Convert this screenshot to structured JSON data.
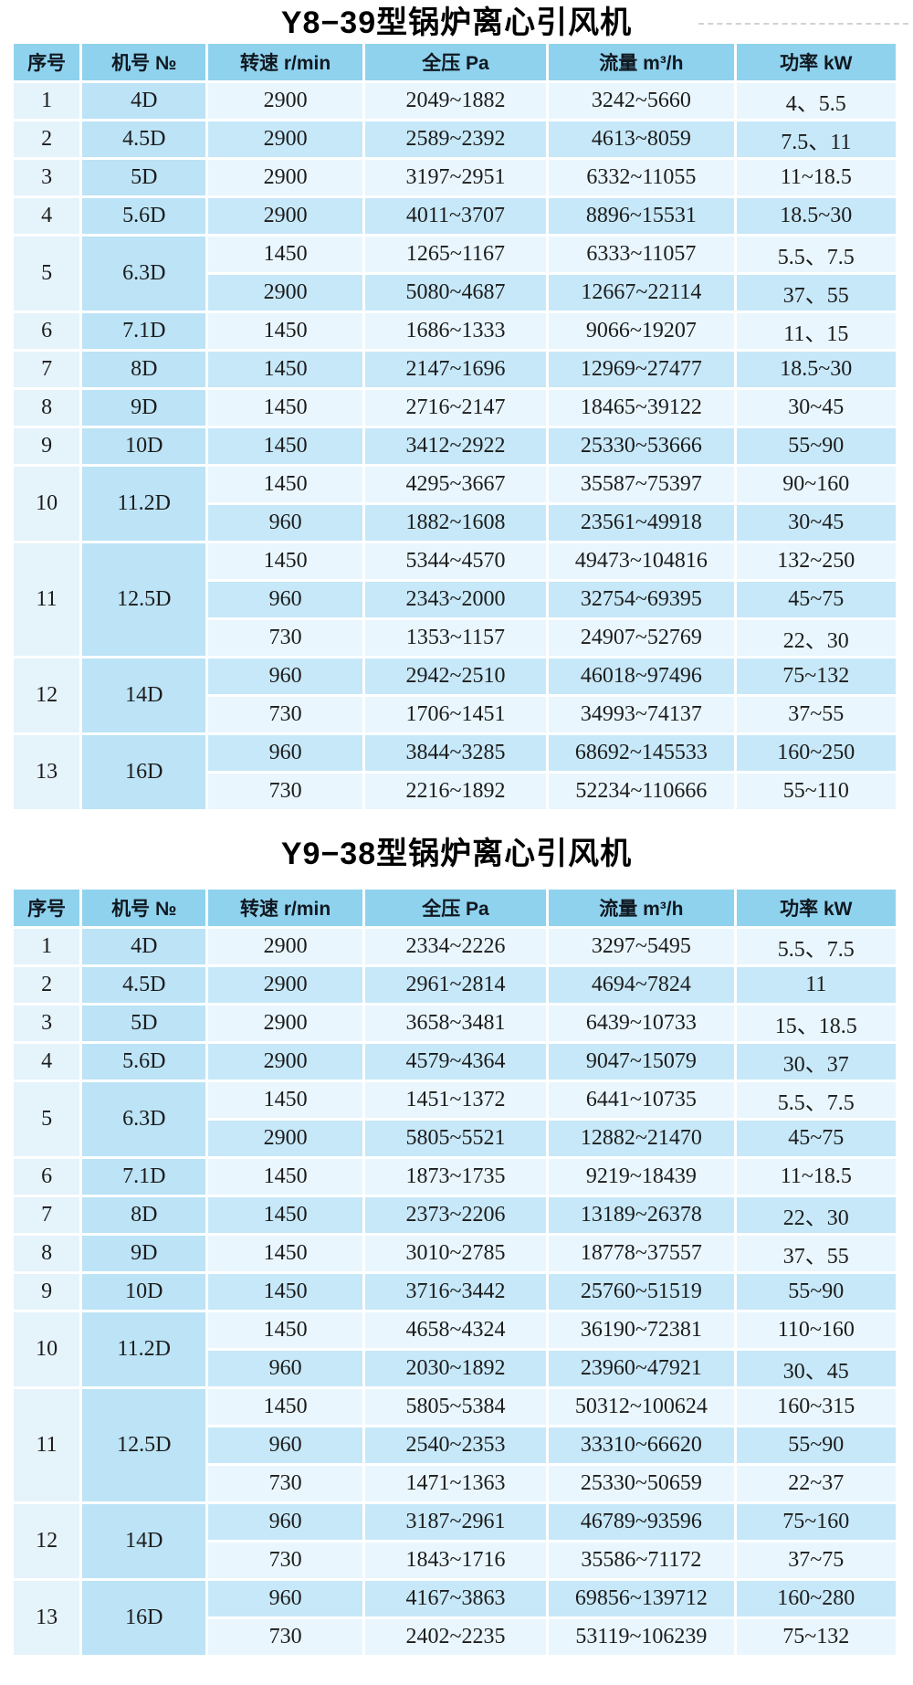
{
  "colors": {
    "header_bg": "#8fd2ee",
    "row_light": "#e9f6fd",
    "row_dark": "#c7e8f8",
    "model_col": "#bce3f6",
    "seq_col": "#e5f3fb",
    "text": "#1c1c1c"
  },
  "tables": [
    {
      "title": "Y8−39型锅炉离心引风机",
      "columns": [
        "序号",
        "机号 №",
        "转速 r/min",
        "全压 Pa",
        "流量 m³/h",
        "功率 kW"
      ],
      "rows": [
        {
          "seq": "1",
          "model": "4D",
          "subs": [
            {
              "speed": "2900",
              "pressure": "2049~1882",
              "flow": "3242~5660",
              "power": "4、5.5"
            }
          ]
        },
        {
          "seq": "2",
          "model": "4.5D",
          "subs": [
            {
              "speed": "2900",
              "pressure": "2589~2392",
              "flow": "4613~8059",
              "power": "7.5、11"
            }
          ]
        },
        {
          "seq": "3",
          "model": "5D",
          "subs": [
            {
              "speed": "2900",
              "pressure": "3197~2951",
              "flow": "6332~11055",
              "power": "11~18.5"
            }
          ]
        },
        {
          "seq": "4",
          "model": "5.6D",
          "subs": [
            {
              "speed": "2900",
              "pressure": "4011~3707",
              "flow": "8896~15531",
              "power": "18.5~30"
            }
          ]
        },
        {
          "seq": "5",
          "model": "6.3D",
          "subs": [
            {
              "speed": "1450",
              "pressure": "1265~1167",
              "flow": "6333~11057",
              "power": "5.5、7.5"
            },
            {
              "speed": "2900",
              "pressure": "5080~4687",
              "flow": "12667~22114",
              "power": "37、55"
            }
          ]
        },
        {
          "seq": "6",
          "model": "7.1D",
          "subs": [
            {
              "speed": "1450",
              "pressure": "1686~1333",
              "flow": "9066~19207",
              "power": "11、15"
            }
          ]
        },
        {
          "seq": "7",
          "model": "8D",
          "subs": [
            {
              "speed": "1450",
              "pressure": "2147~1696",
              "flow": "12969~27477",
              "power": "18.5~30"
            }
          ]
        },
        {
          "seq": "8",
          "model": "9D",
          "subs": [
            {
              "speed": "1450",
              "pressure": "2716~2147",
              "flow": "18465~39122",
              "power": "30~45"
            }
          ]
        },
        {
          "seq": "9",
          "model": "10D",
          "subs": [
            {
              "speed": "1450",
              "pressure": "3412~2922",
              "flow": "25330~53666",
              "power": "55~90"
            }
          ]
        },
        {
          "seq": "10",
          "model": "11.2D",
          "subs": [
            {
              "speed": "1450",
              "pressure": "4295~3667",
              "flow": "35587~75397",
              "power": "90~160"
            },
            {
              "speed": "960",
              "pressure": "1882~1608",
              "flow": "23561~49918",
              "power": "30~45"
            }
          ]
        },
        {
          "seq": "11",
          "model": "12.5D",
          "subs": [
            {
              "speed": "1450",
              "pressure": "5344~4570",
              "flow": "49473~104816",
              "power": "132~250"
            },
            {
              "speed": "960",
              "pressure": "2343~2000",
              "flow": "32754~69395",
              "power": "45~75"
            },
            {
              "speed": "730",
              "pressure": "1353~1157",
              "flow": "24907~52769",
              "power": "22、30"
            }
          ]
        },
        {
          "seq": "12",
          "model": "14D",
          "subs": [
            {
              "speed": "960",
              "pressure": "2942~2510",
              "flow": "46018~97496",
              "power": "75~132"
            },
            {
              "speed": "730",
              "pressure": "1706~1451",
              "flow": "34993~74137",
              "power": "37~55"
            }
          ]
        },
        {
          "seq": "13",
          "model": "16D",
          "subs": [
            {
              "speed": "960",
              "pressure": "3844~3285",
              "flow": "68692~145533",
              "power": "160~250"
            },
            {
              "speed": "730",
              "pressure": "2216~1892",
              "flow": "52234~110666",
              "power": "55~110"
            }
          ]
        }
      ]
    },
    {
      "title": "Y9−38型锅炉离心引风机",
      "columns": [
        "序号",
        "机号 №",
        "转速 r/min",
        "全压 Pa",
        "流量 m³/h",
        "功率 kW"
      ],
      "rows": [
        {
          "seq": "1",
          "model": "4D",
          "subs": [
            {
              "speed": "2900",
              "pressure": "2334~2226",
              "flow": "3297~5495",
              "power": "5.5、7.5"
            }
          ]
        },
        {
          "seq": "2",
          "model": "4.5D",
          "subs": [
            {
              "speed": "2900",
              "pressure": "2961~2814",
              "flow": "4694~7824",
              "power": "11"
            }
          ]
        },
        {
          "seq": "3",
          "model": "5D",
          "subs": [
            {
              "speed": "2900",
              "pressure": "3658~3481",
              "flow": "6439~10733",
              "power": "15、18.5"
            }
          ]
        },
        {
          "seq": "4",
          "model": "5.6D",
          "subs": [
            {
              "speed": "2900",
              "pressure": "4579~4364",
              "flow": "9047~15079",
              "power": "30、37"
            }
          ]
        },
        {
          "seq": "5",
          "model": "6.3D",
          "subs": [
            {
              "speed": "1450",
              "pressure": "1451~1372",
              "flow": "6441~10735",
              "power": "5.5、7.5"
            },
            {
              "speed": "2900",
              "pressure": "5805~5521",
              "flow": "12882~21470",
              "power": "45~75"
            }
          ]
        },
        {
          "seq": "6",
          "model": "7.1D",
          "subs": [
            {
              "speed": "1450",
              "pressure": "1873~1735",
              "flow": "9219~18439",
              "power": "11~18.5"
            }
          ]
        },
        {
          "seq": "7",
          "model": "8D",
          "subs": [
            {
              "speed": "1450",
              "pressure": "2373~2206",
              "flow": "13189~26378",
              "power": "22、30"
            }
          ]
        },
        {
          "seq": "8",
          "model": "9D",
          "subs": [
            {
              "speed": "1450",
              "pressure": "3010~2785",
              "flow": "18778~37557",
              "power": "37、55"
            }
          ]
        },
        {
          "seq": "9",
          "model": "10D",
          "subs": [
            {
              "speed": "1450",
              "pressure": "3716~3442",
              "flow": "25760~51519",
              "power": "55~90"
            }
          ]
        },
        {
          "seq": "10",
          "model": "11.2D",
          "subs": [
            {
              "speed": "1450",
              "pressure": "4658~4324",
              "flow": "36190~72381",
              "power": "110~160"
            },
            {
              "speed": "960",
              "pressure": "2030~1892",
              "flow": "23960~47921",
              "power": "30、45"
            }
          ]
        },
        {
          "seq": "11",
          "model": "12.5D",
          "subs": [
            {
              "speed": "1450",
              "pressure": "5805~5384",
              "flow": "50312~100624",
              "power": "160~315"
            },
            {
              "speed": "960",
              "pressure": "2540~2353",
              "flow": "33310~66620",
              "power": "55~90"
            },
            {
              "speed": "730",
              "pressure": "1471~1363",
              "flow": "25330~50659",
              "power": "22~37"
            }
          ]
        },
        {
          "seq": "12",
          "model": "14D",
          "subs": [
            {
              "speed": "960",
              "pressure": "3187~2961",
              "flow": "46789~93596",
              "power": "75~160"
            },
            {
              "speed": "730",
              "pressure": "1843~1716",
              "flow": "35586~71172",
              "power": "37~75"
            }
          ]
        },
        {
          "seq": "13",
          "model": "16D",
          "subs": [
            {
              "speed": "960",
              "pressure": "4167~3863",
              "flow": "69856~139712",
              "power": "160~280"
            },
            {
              "speed": "730",
              "pressure": "2402~2235",
              "flow": "53119~106239",
              "power": "75~132"
            }
          ]
        }
      ]
    }
  ]
}
